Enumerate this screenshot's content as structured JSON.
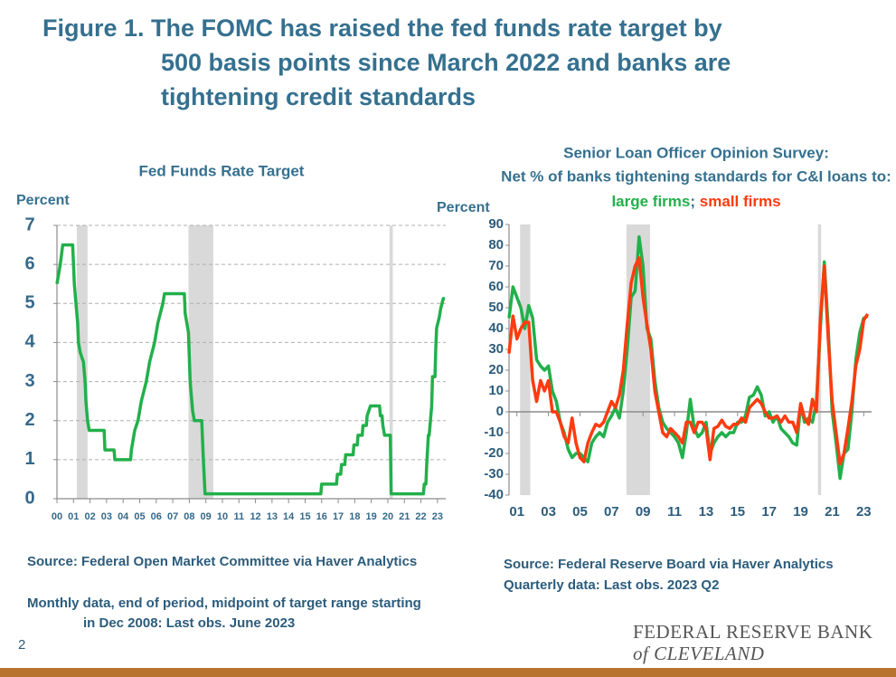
{
  "title": [
    "Figure 1. The FOMC has raised the fed funds rate target by",
    "500 basis points since March 2022 and banks are",
    "tightening credit standards"
  ],
  "chart_data": [
    {
      "type": "line",
      "title": [
        "Fed Funds Rate Target"
      ],
      "ylabel": "Percent",
      "color": "#22b04b",
      "grid": true,
      "xlim": [
        2000,
        2023.5
      ],
      "ylim": [
        0,
        7
      ],
      "yticks": [
        0,
        1,
        2,
        3,
        4,
        5,
        6,
        7
      ],
      "xticks": [
        {
          "value": 2000,
          "label": "00"
        },
        {
          "value": 2001,
          "label": "01"
        },
        {
          "value": 2002,
          "label": "02"
        },
        {
          "value": 2003,
          "label": "03"
        },
        {
          "value": 2004,
          "label": "04"
        },
        {
          "value": 2005,
          "label": "05"
        },
        {
          "value": 2006,
          "label": "06"
        },
        {
          "value": 2007,
          "label": "07"
        },
        {
          "value": 2008,
          "label": "08"
        },
        {
          "value": 2009,
          "label": "09"
        },
        {
          "value": 2010,
          "label": "10"
        },
        {
          "value": 2011,
          "label": "11"
        },
        {
          "value": 2012,
          "label": "12"
        },
        {
          "value": 2013,
          "label": "13"
        },
        {
          "value": 2014,
          "label": "14"
        },
        {
          "value": 2015,
          "label": "15"
        },
        {
          "value": 2016,
          "label": "16"
        },
        {
          "value": 2017,
          "label": "17"
        },
        {
          "value": 2018,
          "label": "18"
        },
        {
          "value": 2019,
          "label": "19"
        },
        {
          "value": 2020,
          "label": "20"
        },
        {
          "value": 2021,
          "label": "21"
        },
        {
          "value": 2022,
          "label": "22"
        },
        {
          "value": 2023,
          "label": "23"
        }
      ],
      "shaded_periods": [
        [
          2001.2,
          2001.85
        ],
        [
          2007.95,
          2009.45
        ],
        [
          2020.1,
          2020.3
        ]
      ],
      "x": [
        2000.0,
        2000.1,
        2000.2,
        2000.35,
        2000.95,
        2001.0,
        2001.05,
        2001.15,
        2001.25,
        2001.3,
        2001.4,
        2001.6,
        2001.7,
        2001.75,
        2001.85,
        2001.95,
        2002.85,
        2002.9,
        2003.45,
        2003.5,
        2004.45,
        2004.5,
        2004.6,
        2004.7,
        2004.9,
        2005.0,
        2005.1,
        2005.25,
        2005.4,
        2005.5,
        2005.6,
        2005.75,
        2005.9,
        2006.0,
        2006.1,
        2006.25,
        2006.4,
        2006.5,
        2007.7,
        2007.75,
        2007.85,
        2007.95,
        2008.05,
        2008.2,
        2008.3,
        2008.75,
        2008.8,
        2008.85,
        2008.95,
        2015.95,
        2016.0,
        2016.9,
        2016.95,
        2017.15,
        2017.2,
        2017.4,
        2017.45,
        2017.9,
        2017.95,
        2018.15,
        2018.2,
        2018.45,
        2018.5,
        2018.7,
        2018.75,
        2018.95,
        2019.5,
        2019.55,
        2019.65,
        2019.7,
        2019.8,
        2020.15,
        2020.2,
        2022.15,
        2022.2,
        2022.3,
        2022.35,
        2022.45,
        2022.5,
        2022.65,
        2022.7,
        2022.85,
        2022.9,
        2022.95,
        2023.1,
        2023.2,
        2023.35,
        2023.45
      ],
      "values": [
        5.5,
        5.75,
        6.0,
        6.5,
        6.5,
        6.0,
        5.5,
        5.0,
        4.5,
        4.0,
        3.75,
        3.5,
        3.0,
        2.5,
        2.0,
        1.75,
        1.75,
        1.25,
        1.25,
        1.0,
        1.0,
        1.25,
        1.5,
        1.75,
        2.0,
        2.25,
        2.5,
        2.75,
        3.0,
        3.25,
        3.5,
        3.75,
        4.0,
        4.25,
        4.5,
        4.75,
        5.0,
        5.25,
        5.25,
        4.75,
        4.5,
        4.25,
        3.0,
        2.25,
        2.0,
        2.0,
        1.5,
        1.0,
        0.125,
        0.125,
        0.375,
        0.375,
        0.625,
        0.625,
        0.875,
        0.875,
        1.125,
        1.125,
        1.375,
        1.375,
        1.625,
        1.625,
        1.875,
        1.875,
        2.125,
        2.375,
        2.375,
        2.125,
        2.125,
        1.875,
        1.625,
        1.625,
        0.125,
        0.125,
        0.375,
        0.375,
        0.875,
        1.625,
        1.625,
        2.375,
        3.125,
        3.125,
        3.875,
        4.375,
        4.625,
        4.875,
        5.125,
        5.125
      ],
      "notes": [
        "Source: Federal Open Market Committee via Haver Analytics",
        "Monthly data, end of period, midpoint of target range starting in Dec 2008: Last obs. June 2023"
      ]
    },
    {
      "type": "line",
      "title": [
        "Senior Loan Officer Opinion Survey:",
        "Net % of banks tightening standards for C&I loans to:"
      ],
      "legend_separator": ";",
      "ylabel": "Percent",
      "grid": false,
      "zero_line": true,
      "xlim": [
        2000.5,
        2023.5
      ],
      "ylim": [
        -40,
        90
      ],
      "yticks": [
        -40,
        -30,
        -20,
        -10,
        0,
        10,
        20,
        30,
        40,
        50,
        60,
        70,
        80,
        90
      ],
      "xticks": [
        {
          "value": 2001,
          "label": "01"
        },
        {
          "value": 2003,
          "label": "03"
        },
        {
          "value": 2005,
          "label": "05"
        },
        {
          "value": 2007,
          "label": "07"
        },
        {
          "value": 2009,
          "label": "09"
        },
        {
          "value": 2011,
          "label": "11"
        },
        {
          "value": 2013,
          "label": "13"
        },
        {
          "value": 2015,
          "label": "15"
        },
        {
          "value": 2017,
          "label": "17"
        },
        {
          "value": 2019,
          "label": "19"
        },
        {
          "value": 2021,
          "label": "21"
        },
        {
          "value": 2023,
          "label": "23"
        }
      ],
      "shaded_periods": [
        [
          2001.2,
          2001.85
        ],
        [
          2007.95,
          2009.45
        ],
        [
          2020.1,
          2020.3
        ]
      ],
      "x": [
        2000.5,
        2000.75,
        2001.0,
        2001.25,
        2001.5,
        2001.75,
        2002.0,
        2002.25,
        2002.5,
        2002.75,
        2003.0,
        2003.25,
        2003.5,
        2003.75,
        2004.0,
        2004.25,
        2004.5,
        2004.75,
        2005.0,
        2005.25,
        2005.5,
        2005.75,
        2006.0,
        2006.25,
        2006.5,
        2006.75,
        2007.0,
        2007.25,
        2007.5,
        2007.75,
        2008.0,
        2008.25,
        2008.5,
        2008.75,
        2009.0,
        2009.25,
        2009.5,
        2009.75,
        2010.0,
        2010.25,
        2010.5,
        2010.75,
        2011.0,
        2011.25,
        2011.5,
        2011.75,
        2012.0,
        2012.25,
        2012.5,
        2012.75,
        2013.0,
        2013.25,
        2013.5,
        2013.75,
        2014.0,
        2014.25,
        2014.5,
        2014.75,
        2015.0,
        2015.25,
        2015.5,
        2015.75,
        2016.0,
        2016.25,
        2016.5,
        2016.75,
        2017.0,
        2017.25,
        2017.5,
        2017.75,
        2018.0,
        2018.25,
        2018.5,
        2018.75,
        2019.0,
        2019.25,
        2019.5,
        2019.75,
        2020.0,
        2020.25,
        2020.5,
        2020.75,
        2021.0,
        2021.25,
        2021.5,
        2021.75,
        2022.0,
        2022.25,
        2022.5,
        2022.75,
        2023.0,
        2023.25
      ],
      "series": [
        {
          "name": "large firms",
          "color": "#22b04b",
          "values": [
            45,
            60,
            55,
            50,
            40,
            51,
            45,
            25,
            22,
            20,
            22,
            10,
            5,
            -5,
            -10,
            -18,
            -22,
            -20,
            -20,
            -22,
            -24,
            -15,
            -12,
            -10,
            -12,
            -5,
            -2,
            2,
            -3,
            10,
            30,
            55,
            58,
            84,
            70,
            40,
            35,
            15,
            2,
            -5,
            -8,
            -10,
            -12,
            -15,
            -22,
            -10,
            6,
            -8,
            -12,
            -10,
            -5,
            -20,
            -15,
            -12,
            -10,
            -12,
            -10,
            -10,
            -5,
            -5,
            -2,
            7,
            8,
            12,
            8,
            -2,
            0,
            -5,
            -2,
            -8,
            -10,
            -12,
            -15,
            -16,
            3,
            -5,
            -3,
            -5,
            5,
            40,
            72,
            40,
            0,
            -15,
            -32,
            -20,
            -18,
            0,
            25,
            38,
            45,
            46
          ]
        },
        {
          "name": "small firms",
          "color": "#ff3b0f",
          "values": [
            28,
            46,
            35,
            40,
            43,
            43,
            15,
            5,
            15,
            10,
            15,
            0,
            0,
            -5,
            -12,
            -15,
            -3,
            -15,
            -22,
            -24,
            -15,
            -10,
            -6,
            -7,
            -5,
            0,
            5,
            2,
            8,
            20,
            42,
            62,
            70,
            74,
            55,
            42,
            30,
            10,
            0,
            -10,
            -12,
            -8,
            -10,
            -12,
            -15,
            -5,
            -5,
            -10,
            -5,
            -5,
            -8,
            -23,
            -8,
            -7,
            -4,
            -7,
            -8,
            -6,
            -6,
            -3,
            -5,
            2,
            4,
            6,
            4,
            0,
            -3,
            -3,
            -2,
            -5,
            -2,
            -5,
            -5,
            -10,
            4,
            -3,
            -6,
            6,
            0,
            45,
            70,
            35,
            5,
            -10,
            -25,
            -20,
            -8,
            5,
            22,
            30,
            44,
            47
          ]
        }
      ],
      "notes": [
        "Source: Federal Reserve Board via Haver Analytics",
        "Quarterly data: Last obs. 2023 Q2"
      ]
    }
  ],
  "footer": {
    "page_number": 2,
    "logo_line1": "FEDERAL RESERVE BANK",
    "logo_line2": "of CLEVELAND"
  }
}
